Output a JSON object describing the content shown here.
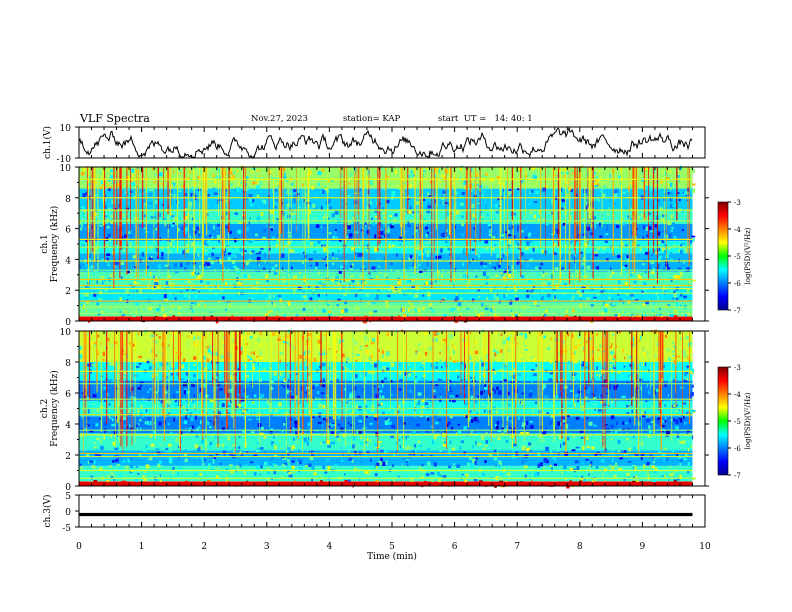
{
  "header": {
    "title": "VLF Spectra",
    "date": "Nov.27, 2023",
    "station": "station= KAP",
    "start": "start  UT =   14: 40: 1"
  },
  "chart_data": [
    {
      "type": "line",
      "panel": "waveform-ch1",
      "ylabel": "ch.1(V)",
      "ylim": [
        -10,
        10
      ],
      "yticks": [
        "10",
        "-10"
      ],
      "xlim": [
        0,
        10
      ],
      "series": [
        {
          "values": "continuous noisy waveform, amplitude ~ -8 to +8 V over 0–9.8 min"
        }
      ]
    },
    {
      "type": "heatmap",
      "panel": "spectrogram-ch1",
      "ylabel_1": "ch.1",
      "ylabel_2": "Frequency  (kHz)",
      "ylim": [
        0,
        10
      ],
      "yticks": [
        "0",
        "2",
        "4",
        "6",
        "8",
        "10"
      ],
      "xlim": [
        0,
        10
      ],
      "data_end_min": 9.8,
      "bands_khz": [
        {
          "f0": 0.0,
          "f1": 0.3,
          "level": -3.6
        },
        {
          "f0": 0.3,
          "f1": 1.2,
          "level": -5.1
        },
        {
          "f0": 1.2,
          "f1": 2.2,
          "level": -5.6
        },
        {
          "f0": 2.2,
          "f1": 3.2,
          "level": -5.2
        },
        {
          "f0": 3.2,
          "f1": 4.4,
          "level": -5.8
        },
        {
          "f0": 4.4,
          "f1": 5.2,
          "level": -5.4
        },
        {
          "f0": 5.2,
          "f1": 6.3,
          "level": -5.9
        },
        {
          "f0": 6.3,
          "f1": 7.2,
          "level": -5.3
        },
        {
          "f0": 7.2,
          "f1": 8.6,
          "level": -5.7
        },
        {
          "f0": 8.6,
          "f1": 10.0,
          "level": -4.9
        }
      ],
      "lines_khz": [
        0.5,
        0.9,
        1.3,
        1.8,
        2.1,
        2.3,
        2.7,
        3.3,
        3.9,
        4.8,
        5.3,
        6.5,
        7.2,
        8.0,
        9.2
      ]
    },
    {
      "type": "heatmap",
      "panel": "spectrogram-ch2",
      "ylabel_1": "ch.2",
      "ylabel_2": "Frequency  (kHz)",
      "ylim": [
        0,
        10
      ],
      "yticks": [
        "0",
        "2",
        "4",
        "6",
        "8",
        "10"
      ],
      "xlim": [
        0,
        10
      ],
      "data_end_min": 9.8,
      "bands_khz": [
        {
          "f0": 0.0,
          "f1": 0.3,
          "level": -3.6
        },
        {
          "f0": 0.3,
          "f1": 1.3,
          "level": -5.3
        },
        {
          "f0": 1.3,
          "f1": 2.3,
          "level": -5.8
        },
        {
          "f0": 2.3,
          "f1": 3.4,
          "level": -5.3
        },
        {
          "f0": 3.4,
          "f1": 4.5,
          "level": -6.0
        },
        {
          "f0": 4.5,
          "f1": 5.5,
          "level": -5.4
        },
        {
          "f0": 5.5,
          "f1": 6.8,
          "level": -6.0
        },
        {
          "f0": 6.8,
          "f1": 8.0,
          "level": -5.5
        },
        {
          "f0": 8.0,
          "f1": 10.0,
          "level": -4.7
        }
      ],
      "lines_khz": [
        0.5,
        1.0,
        1.9,
        2.1,
        3.3,
        3.6,
        4.6,
        5.0,
        5.6,
        6.6,
        7.4
      ]
    },
    {
      "type": "line",
      "panel": "channel3",
      "ylabel": "ch.3(V)",
      "ylim": [
        -5,
        5
      ],
      "yticks": [
        "5",
        "0",
        "-5"
      ],
      "xlim": [
        0,
        10
      ],
      "series": [
        {
          "values": "flat signal near -1 V from 0 to 9.8 min"
        }
      ]
    }
  ],
  "xaxis": {
    "label": "Time  (min)",
    "ticks": [
      "0",
      "1",
      "2",
      "3",
      "4",
      "5",
      "6",
      "7",
      "8",
      "9",
      "10"
    ]
  },
  "colorbar": {
    "label": "log(PSD)(V²/Hz)",
    "ticks": [
      "-3",
      "-4",
      "-5",
      "-6",
      "-7"
    ],
    "range": [
      -7,
      -3
    ]
  }
}
